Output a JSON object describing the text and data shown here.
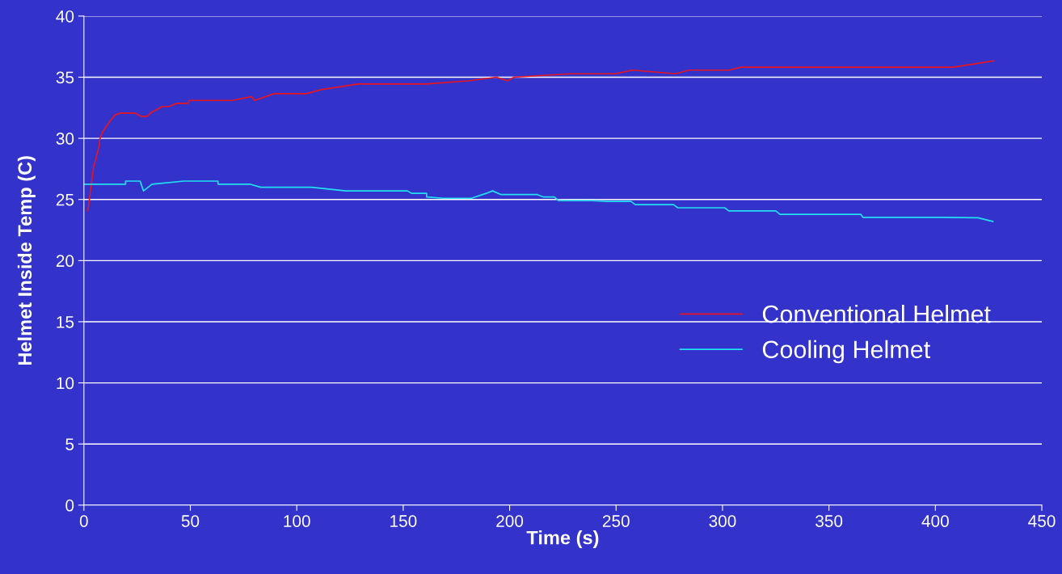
{
  "chart_data": {
    "type": "line",
    "xlabel": "Time (s)",
    "ylabel": "Helmet Inside Temp (C)",
    "xlim": [
      0,
      450
    ],
    "xticks": [
      0,
      50,
      100,
      150,
      200,
      250,
      300,
      350,
      400,
      450
    ],
    "ylim": [
      0,
      40
    ],
    "yticks": [
      0,
      5,
      10,
      15,
      20,
      25,
      30,
      35,
      40
    ],
    "grid": "y",
    "legend": "right",
    "marker": "none",
    "line_style": "solid",
    "series": [
      {
        "name": "Conventional Helmet",
        "color": "#e8141e",
        "x": [
          1.9,
          4.5,
          7.2,
          7.5,
          8.7,
          11.8,
          14.5,
          17.1,
          24,
          27,
          29.7,
          31.6,
          36.9,
          39.9,
          43.7,
          49,
          49.4,
          69.6,
          78.7,
          80.3,
          89.3,
          104.5,
          111.4,
          128.8,
          160.7,
          180.5,
          193.8,
          199,
          202,
          228.5,
          249.6,
          257.7,
          278,
          284.2,
          303.2,
          308.6,
          408.4,
          418,
          427.4
        ],
        "values": [
          24.1,
          27.6,
          29.4,
          29.95,
          30.5,
          31.3,
          31.9,
          32.07,
          32.07,
          31.8,
          31.8,
          32.1,
          32.6,
          32.6,
          32.86,
          32.86,
          33.1,
          33.1,
          33.4,
          33.1,
          33.65,
          33.65,
          33.98,
          34.45,
          34.45,
          34.7,
          35,
          34.7,
          35,
          35.28,
          35.28,
          35.58,
          35.28,
          35.58,
          35.58,
          35.82,
          35.82,
          36.08,
          36.34
        ]
      },
      {
        "name": "Cooling Helmet",
        "color": "#22e0f0",
        "x": [
          0,
          19.6,
          19.6,
          26.4,
          28,
          32,
          47,
          63,
          63,
          78,
          83,
          107,
          123,
          152,
          154,
          161,
          161,
          169,
          182,
          189,
          192,
          196,
          213,
          216,
          221,
          223,
          239,
          246,
          257,
          259,
          277,
          279,
          301,
          303,
          325,
          327,
          365,
          366,
          383,
          405,
          420,
          427
        ],
        "values": [
          26.25,
          26.25,
          26.5,
          26.5,
          25.7,
          26.25,
          26.5,
          26.5,
          26.25,
          26.25,
          26.0,
          26.0,
          25.7,
          25.7,
          25.5,
          25.5,
          25.2,
          25.1,
          25.1,
          25.5,
          25.7,
          25.4,
          25.4,
          25.2,
          25.2,
          24.9,
          24.9,
          24.84,
          24.84,
          24.58,
          24.58,
          24.32,
          24.32,
          24.06,
          24.06,
          23.78,
          23.78,
          23.53,
          23.53,
          23.53,
          23.5,
          23.2
        ]
      }
    ]
  }
}
